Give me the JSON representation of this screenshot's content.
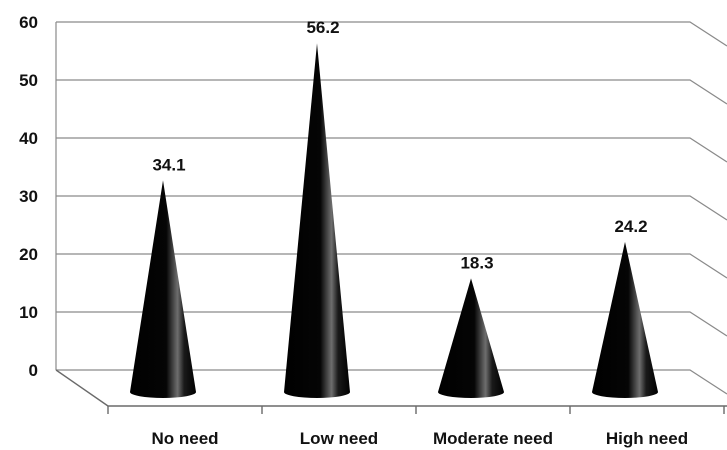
{
  "chart_data": {
    "type": "bar",
    "shape": "3d-cone",
    "categories": [
      "No need",
      "Low need",
      "Moderate need",
      "High need"
    ],
    "values": [
      34.1,
      56.2,
      18.3,
      24.2
    ],
    "data_labels": [
      "34.1",
      "56.2",
      "18.3",
      "24.2"
    ],
    "ylim": [
      0,
      60
    ],
    "yticks": [
      "0",
      "10",
      "20",
      "30",
      "40",
      "50",
      "60"
    ],
    "title": "",
    "xlabel": "",
    "ylabel": "",
    "grid": true,
    "legend": "none",
    "colors": {
      "cone": "#000000",
      "highlight": "#6e6e6e",
      "grid": "#8a8a8a"
    }
  }
}
